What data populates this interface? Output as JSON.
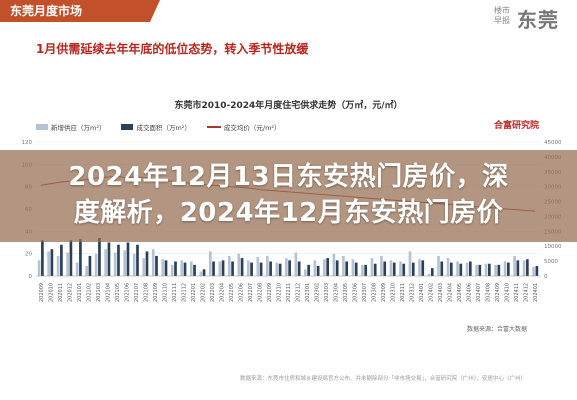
{
  "header": {
    "tab_label": "东莞月度市场",
    "brand_small": "楼市早报",
    "brand_big": "东莞"
  },
  "headline": "1月供需延续去年年底的低位态势，转入季节性放缓",
  "chart_data": {
    "type": "bar",
    "title": "东莞市2010-2024年月度住宅供求走势（万㎡，元/㎡）",
    "legend": [
      "新增供应（万m²）",
      "成交面积（万m²）",
      "成交均价（元/m²）"
    ],
    "source_brand": "合富研究院",
    "y_left_ticks": [
      "120",
      "100",
      "80",
      "60",
      "40",
      "20",
      "0"
    ],
    "y_right_ticks": [
      "45000",
      "40000",
      "35000",
      "30000",
      "25000",
      "20000",
      "15000",
      "10000",
      "5000",
      "0"
    ],
    "ylim_left": [
      0,
      120
    ],
    "ylim_right": [
      0,
      45000
    ],
    "categories": [
      "202009",
      "202010",
      "202011",
      "202012",
      "202101",
      "202102",
      "202103",
      "202104",
      "202105",
      "202106",
      "202107",
      "202108",
      "202109",
      "202110",
      "202111",
      "202112",
      "202201",
      "202202",
      "202203",
      "202204",
      "202205",
      "202206",
      "202207",
      "202208",
      "202209",
      "202210",
      "202211",
      "202212",
      "202301",
      "202302",
      "202303",
      "202304",
      "202305",
      "202306",
      "202307",
      "202308",
      "202309",
      "202310",
      "202311",
      "202312",
      "202401",
      "202402",
      "202403",
      "202404",
      "202405",
      "202406",
      "202407",
      "202408",
      "202409",
      "202410",
      "202411",
      "202412",
      "202401"
    ],
    "series": [
      {
        "name": "新增供应（万m²）",
        "values": [
          14,
          22,
          18,
          21,
          12,
          9,
          20,
          24,
          21,
          23,
          20,
          16,
          24,
          15,
          10,
          14,
          13,
          4,
          22,
          13,
          18,
          20,
          14,
          17,
          18,
          12,
          16,
          21,
          6,
          14,
          15,
          20,
          18,
          15,
          10,
          16,
          18,
          14,
          13,
          22,
          15,
          2,
          18,
          16,
          13,
          12,
          10,
          11,
          10,
          13,
          18,
          14,
          8
        ]
      },
      {
        "name": "成交面积（万m²）",
        "values": [
          32,
          24,
          28,
          32,
          33,
          18,
          34,
          30,
          28,
          30,
          28,
          22,
          18,
          14,
          13,
          12,
          10,
          6,
          13,
          14,
          13,
          16,
          12,
          12,
          13,
          11,
          14,
          13,
          10,
          9,
          16,
          14,
          13,
          12,
          10,
          11,
          13,
          12,
          11,
          12,
          14,
          7,
          13,
          12,
          11,
          13,
          10,
          11,
          10,
          12,
          14,
          15,
          9
        ]
      },
      {
        "name": "成交均价（元/m²）",
        "values": [
          30500,
          31000,
          31500,
          31800,
          32000,
          32500,
          33000,
          33200,
          33500,
          33000,
          33300,
          33000,
          32500,
          32000,
          31800,
          31500,
          31000,
          30800,
          30500,
          30300,
          30000,
          29800,
          29500,
          29000,
          28800,
          28500,
          28300,
          28000,
          27800,
          27500,
          27300,
          27000,
          26800,
          26500,
          26300,
          26000,
          25800,
          25500,
          25300,
          25000,
          24800,
          24500,
          24300,
          24000,
          23800,
          23500,
          23200,
          23000,
          22800,
          22500,
          22300,
          22000,
          21800
        ]
      }
    ]
  },
  "footnote": "数据来源：东莞市住房和城乡建设局官方公布、并未剔除部分「非市场交易」，合富研究院（广州）、安居中心（广州）",
  "footnote2": "数据来源：合富大数据",
  "banner_line1": "2024年12月13日东安热门房价，深",
  "banner_line2": "度解析，2024年12月东安热门房价"
}
